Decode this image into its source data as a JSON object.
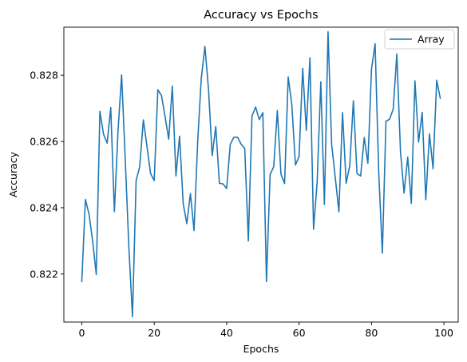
{
  "chart_data": {
    "type": "line",
    "title": "Accuracy vs Epochs",
    "xlabel": "Epochs",
    "ylabel": "Accuracy",
    "xlim": [
      -4.95,
      103.95
    ],
    "ylim": [
      0.82055,
      0.82945
    ],
    "xticks": [
      0,
      20,
      40,
      60,
      80,
      100
    ],
    "yticks": [
      0.822,
      0.824,
      0.826,
      0.828
    ],
    "ytick_labels": [
      "0.822",
      "0.824",
      "0.826",
      "0.828"
    ],
    "grid": false,
    "legend_position": "top-right",
    "colors": {
      "series": "#1f77b4"
    },
    "series": [
      {
        "name": "Array",
        "x": [
          0,
          1,
          2,
          3,
          4,
          5,
          6,
          7,
          8,
          9,
          10,
          11,
          12,
          13,
          14,
          15,
          16,
          17,
          18,
          19,
          20,
          21,
          22,
          23,
          24,
          25,
          26,
          27,
          28,
          29,
          30,
          31,
          32,
          33,
          34,
          35,
          36,
          37,
          38,
          39,
          40,
          41,
          42,
          43,
          44,
          45,
          46,
          47,
          48,
          49,
          50,
          51,
          52,
          53,
          54,
          55,
          56,
          57,
          58,
          59,
          60,
          61,
          62,
          63,
          64,
          65,
          66,
          67,
          68,
          69,
          70,
          71,
          72,
          73,
          74,
          75,
          76,
          77,
          78,
          79,
          80,
          81,
          82,
          83,
          84,
          85,
          86,
          87,
          88,
          89,
          90,
          91,
          92,
          93,
          94,
          95,
          96,
          97,
          98,
          99
        ],
        "values": [
          0.82177,
          0.82425,
          0.82381,
          0.82299,
          0.82199,
          0.82691,
          0.82622,
          0.82595,
          0.82702,
          0.82388,
          0.82631,
          0.82801,
          0.82546,
          0.8228,
          0.82071,
          0.82482,
          0.82524,
          0.82665,
          0.82585,
          0.82503,
          0.82482,
          0.82756,
          0.82739,
          0.82675,
          0.82607,
          0.82767,
          0.82496,
          0.82616,
          0.82413,
          0.82352,
          0.82443,
          0.82331,
          0.82599,
          0.82791,
          0.82887,
          0.82757,
          0.82557,
          0.82645,
          0.82474,
          0.82472,
          0.82458,
          0.82591,
          0.82613,
          0.82613,
          0.82592,
          0.82579,
          0.823,
          0.82677,
          0.82704,
          0.82666,
          0.82687,
          0.82177,
          0.825,
          0.82524,
          0.82693,
          0.82501,
          0.82473,
          0.82795,
          0.82711,
          0.82529,
          0.82554,
          0.82821,
          0.82633,
          0.82853,
          0.82335,
          0.82478,
          0.8278,
          0.8241,
          0.82931,
          0.82591,
          0.82491,
          0.82388,
          0.82687,
          0.82474,
          0.82527,
          0.82723,
          0.82503,
          0.82496,
          0.82612,
          0.82534,
          0.82818,
          0.82895,
          0.82506,
          0.82263,
          0.82661,
          0.82667,
          0.82698,
          0.82864,
          0.8257,
          0.82444,
          0.82553,
          0.82413,
          0.82783,
          0.82598,
          0.82688,
          0.82424,
          0.82623,
          0.82518,
          0.82785,
          0.8273
        ]
      }
    ]
  }
}
